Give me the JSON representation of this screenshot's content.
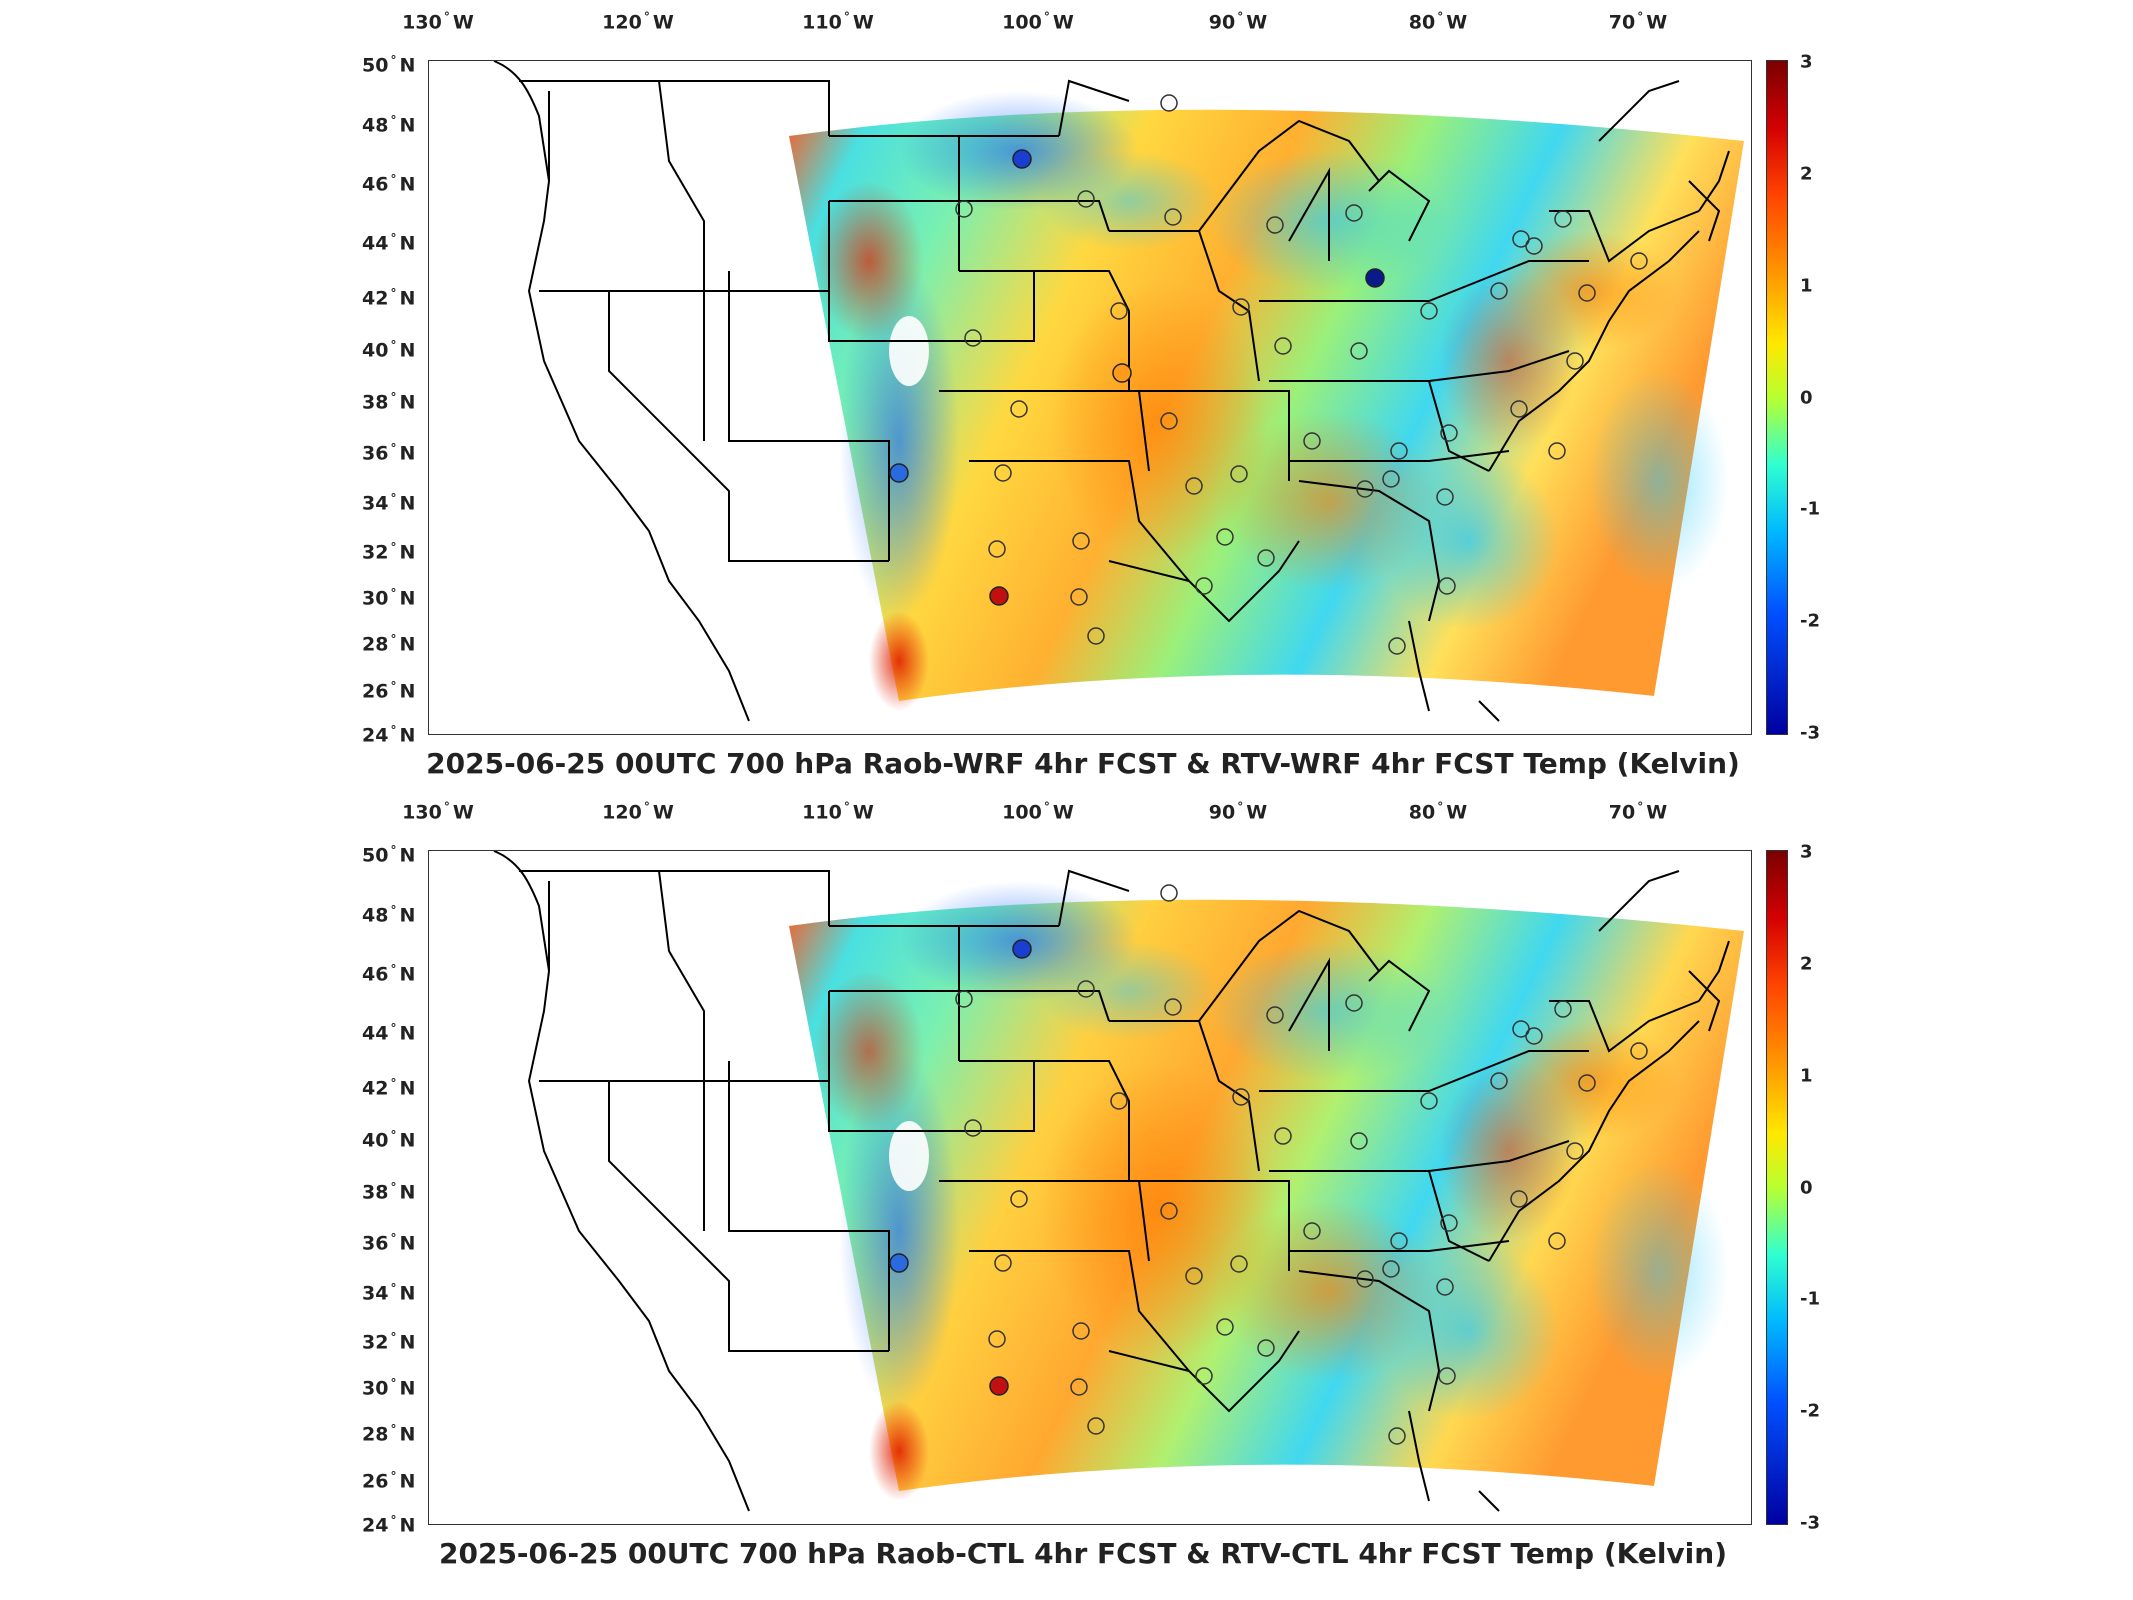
{
  "figure": {
    "lon_labels": [
      {
        "deg": "130",
        "hemi": "W"
      },
      {
        "deg": "120",
        "hemi": "W"
      },
      {
        "deg": "110",
        "hemi": "W"
      },
      {
        "deg": "100",
        "hemi": "W"
      },
      {
        "deg": "90",
        "hemi": "W"
      },
      {
        "deg": "80",
        "hemi": "W"
      },
      {
        "deg": "70",
        "hemi": "W"
      }
    ],
    "lat_labels": [
      {
        "deg": "50",
        "hemi": "N"
      },
      {
        "deg": "48",
        "hemi": "N"
      },
      {
        "deg": "46",
        "hemi": "N"
      },
      {
        "deg": "44",
        "hemi": "N"
      },
      {
        "deg": "42",
        "hemi": "N"
      },
      {
        "deg": "40",
        "hemi": "N"
      },
      {
        "deg": "38",
        "hemi": "N"
      },
      {
        "deg": "36",
        "hemi": "N"
      },
      {
        "deg": "34",
        "hemi": "N"
      },
      {
        "deg": "32",
        "hemi": "N"
      },
      {
        "deg": "30",
        "hemi": "N"
      },
      {
        "deg": "28",
        "hemi": "N"
      },
      {
        "deg": "26",
        "hemi": "N"
      },
      {
        "deg": "24",
        "hemi": "N"
      }
    ],
    "colorbar": {
      "min": -3,
      "max": 3,
      "ticks": [
        "3",
        "2",
        "1",
        "0",
        "-1",
        "-2",
        "-3"
      ],
      "colormap": "jet",
      "colors": [
        "#7a0000",
        "#d40000",
        "#ff4500",
        "#ff9a00",
        "#ffe800",
        "#b8ff30",
        "#30ffd0",
        "#00b8ff",
        "#0050ff",
        "#0000a0"
      ]
    }
  },
  "panels": [
    {
      "title": "2025-06-25 00UTC 700 hPa Raob-WRF 4hr FCST & RTV-WRF 4hr FCST Temp (Kelvin)",
      "filled_markers": [
        "#1a3fd0",
        "#0a1a8a",
        "#2a6ae0",
        "#c01010",
        "#ff9a1a"
      ]
    },
    {
      "title": "2025-06-25 00UTC 700 hPa Raob-CTL 4hr FCST & RTV-CTL 4hr FCST Temp (Kelvin)",
      "filled_markers": [
        "#1a3fd0",
        "#2a6ae0",
        "#c01010"
      ]
    }
  ]
}
